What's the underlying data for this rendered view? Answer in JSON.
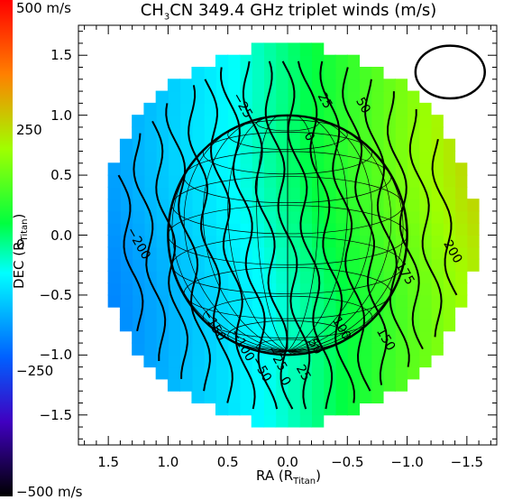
{
  "chart_data": {
    "type": "heatmap",
    "title_parts": {
      "pre": "CH",
      "sub": "3",
      "post": "CN 349.4 GHz triplet winds (m/s)"
    },
    "xlabel_parts": {
      "pre": "RA (R",
      "sub": "Titan",
      "post": ")"
    },
    "ylabel_parts": {
      "pre": "DEC (R",
      "sub": "Titan",
      "post": ")"
    },
    "xlim": [
      1.75,
      -1.75
    ],
    "ylim": [
      -1.75,
      1.75
    ],
    "x_ticks": [
      "1.5",
      "1.0",
      "0.5",
      "0.0",
      "−0.5",
      "−1.0",
      "−1.5"
    ],
    "x_tick_values": [
      1.5,
      1.0,
      0.5,
      0.0,
      -0.5,
      -1.0,
      -1.5
    ],
    "y_ticks": [
      "1.5",
      "1.0",
      "0.5",
      "0.0",
      "−0.5",
      "−1.0",
      "−1.5"
    ],
    "y_tick_values": [
      1.5,
      1.0,
      0.5,
      0.0,
      -0.5,
      -1.0,
      -1.5
    ],
    "colorbar": {
      "min": -500,
      "max": 500,
      "labels": [
        "500 m/s",
        "250",
        "0",
        "−250",
        "−500 m/s"
      ],
      "label_values": [
        500,
        250,
        0,
        -250,
        -500
      ]
    },
    "contour_labels": [
      {
        "text": "−25",
        "x": 0.38,
        "y": 1.08
      },
      {
        "text": "25",
        "x": -0.31,
        "y": 1.12
      },
      {
        "text": "50",
        "x": -0.63,
        "y": 1.08
      },
      {
        "text": "0",
        "x": -0.18,
        "y": 0.82
      },
      {
        "text": "−200",
        "x": 1.25,
        "y": -0.07
      },
      {
        "text": "200",
        "x": -1.38,
        "y": -0.14
      },
      {
        "text": "175",
        "x": -0.98,
        "y": -0.32
      },
      {
        "text": "−150",
        "x": 0.62,
        "y": -0.75
      },
      {
        "text": "−100",
        "x": 0.38,
        "y": -0.92
      },
      {
        "text": "−25",
        "x": 0.09,
        "y": -1.03
      },
      {
        "text": "−50",
        "x": 0.22,
        "y": -1.12
      },
      {
        "text": "0",
        "x": 0.02,
        "y": -1.22
      },
      {
        "text": "25",
        "x": -0.13,
        "y": -1.15
      },
      {
        "text": "50",
        "x": -0.23,
        "y": -0.93
      },
      {
        "text": "100",
        "x": -0.45,
        "y": -0.78
      },
      {
        "text": "150",
        "x": -0.82,
        "y": -0.87
      }
    ],
    "wind_field": {
      "description_free": true,
      "peak": 220,
      "gradient_axis": "x",
      "rate_per_RA": -150
    },
    "beam": {
      "center_x": -1.36,
      "center_y": 1.36,
      "semi_major": 0.29,
      "semi_minor": 0.22
    },
    "disk_radius": 1.0,
    "legend": "none",
    "grid": false
  }
}
